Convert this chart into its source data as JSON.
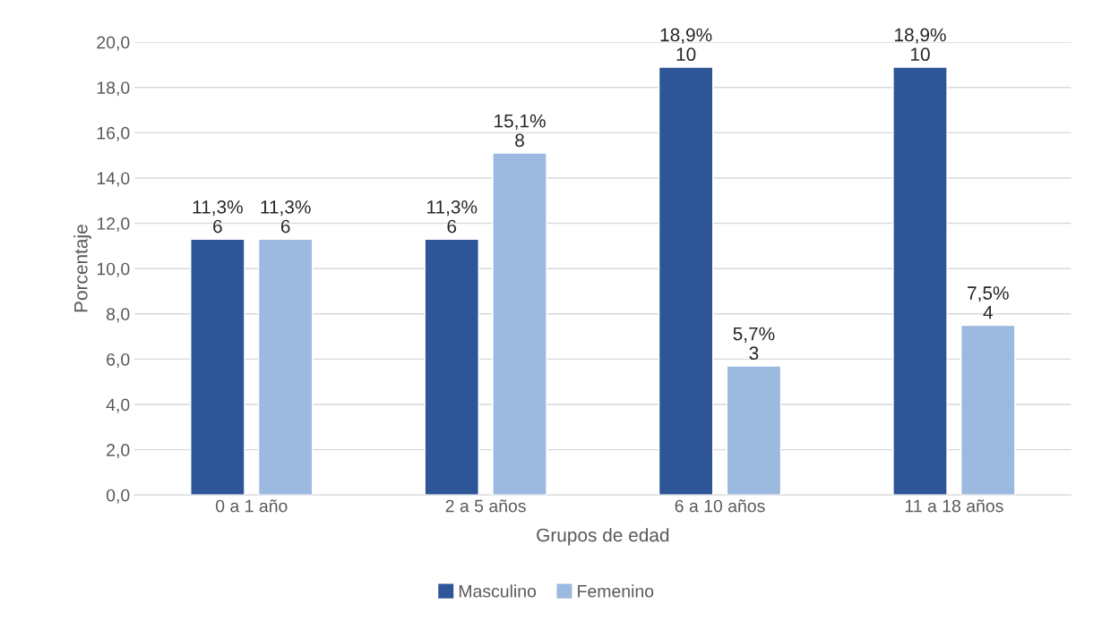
{
  "chart_data": {
    "type": "bar",
    "xlabel": "Grupos de edad",
    "ylabel": "Porcentaje",
    "categories": [
      "0 a 1 año",
      "2 a 5 años",
      "6 a 10 años",
      "11 a 18 años"
    ],
    "series": [
      {
        "name": "Masculino",
        "color": "#2e5597",
        "values": [
          11.3,
          11.3,
          18.9,
          18.9
        ],
        "value_labels": [
          "11,3%\n6",
          "11,3%\n6",
          "18,9%\n10",
          "18,9%\n10"
        ]
      },
      {
        "name": "Femenino",
        "color": "#9cb9df",
        "values": [
          11.3,
          15.1,
          5.7,
          7.5
        ],
        "value_labels": [
          "11,3%\n6",
          "15,1%\n8",
          "5,7%\n3",
          "7,5%\n4"
        ]
      }
    ],
    "ylim": [
      0,
      20
    ],
    "yticks": [
      {
        "value": 0,
        "label": "0,0"
      },
      {
        "value": 2,
        "label": "2,0"
      },
      {
        "value": 4,
        "label": "4,0"
      },
      {
        "value": 6,
        "label": "6,0"
      },
      {
        "value": 8,
        "label": "8,0"
      },
      {
        "value": 10,
        "label": "10,0"
      },
      {
        "value": 12,
        "label": "12,0"
      },
      {
        "value": 14,
        "label": "14,0"
      },
      {
        "value": 16,
        "label": "16,0"
      },
      {
        "value": 18,
        "label": "18,0"
      },
      {
        "value": 20,
        "label": "20,0"
      }
    ],
    "grid": "y",
    "legend": "bottom"
  }
}
